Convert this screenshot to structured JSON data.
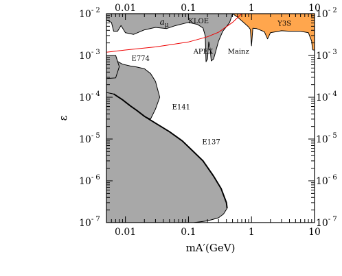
{
  "chart_data": {
    "type": "area",
    "title": "",
    "xlabel": "mA′(GeV)",
    "ylabel": "ε",
    "x_scale": "log",
    "y_scale": "log",
    "xlim": [
      0.005,
      10
    ],
    "ylim": [
      1e-07,
      0.01
    ],
    "grid": false,
    "x_ticks": [
      {
        "value": 0.01,
        "label": "0.01"
      },
      {
        "value": 0.1,
        "label": "0.1"
      },
      {
        "value": 1,
        "label": "1"
      },
      {
        "value": 10,
        "label": "10"
      }
    ],
    "y_ticks": [
      {
        "value": 0.01,
        "base": "10",
        "exp": "- 2"
      },
      {
        "value": 0.001,
        "base": "10",
        "exp": "- 3"
      },
      {
        "value": 0.0001,
        "base": "10",
        "exp": "- 4"
      },
      {
        "value": 1e-05,
        "base": "10",
        "exp": "- 5"
      },
      {
        "value": 1e-06,
        "base": "10",
        "exp": "- 6"
      },
      {
        "value": 1e-07,
        "base": "10",
        "exp": "- 7"
      }
    ],
    "regions": [
      {
        "name": "E137",
        "color": "#a8a8a8",
        "points": [
          [
            0.005,
            1e-07
          ],
          [
            0.005,
            0.00013
          ],
          [
            0.0065,
            0.00012
          ],
          [
            0.009,
            8.7e-05
          ],
          [
            0.012,
            6.2e-05
          ],
          [
            0.015,
            4.9e-05
          ],
          [
            0.02,
            3.5e-05
          ],
          [
            0.03,
            2.4e-05
          ],
          [
            0.05,
            1.5e-05
          ],
          [
            0.08,
            9e-06
          ],
          [
            0.12,
            5e-06
          ],
          [
            0.17,
            3e-06
          ],
          [
            0.25,
            1.3e-06
          ],
          [
            0.33,
            6.5e-07
          ],
          [
            0.4,
            3e-07
          ],
          [
            0.41,
            2.2e-07
          ],
          [
            0.36,
            1.6e-07
          ],
          [
            0.3,
            1.3e-07
          ],
          [
            0.2,
            1.1e-07
          ],
          [
            0.12,
            1e-07
          ]
        ]
      },
      {
        "name": "E141",
        "color": "#a8a8a8",
        "points": [
          [
            0.005,
            0.00013
          ],
          [
            0.0065,
            0.00012
          ],
          [
            0.009,
            8.7e-05
          ],
          [
            0.012,
            6.2e-05
          ],
          [
            0.015,
            4.9e-05
          ],
          [
            0.02,
            3.5e-05
          ],
          [
            0.025,
            3e-05
          ],
          [
            0.03,
            5.2e-05
          ],
          [
            0.035,
            0.0001
          ],
          [
            0.03,
            0.00024
          ],
          [
            0.025,
            0.00037
          ],
          [
            0.02,
            0.00048
          ],
          [
            0.015,
            0.00053
          ],
          [
            0.012,
            0.00056
          ],
          [
            0.009,
            0.00062
          ],
          [
            0.0075,
            0.00072
          ],
          [
            0.007,
            0.001
          ],
          [
            0.005,
            0.001
          ]
        ]
      },
      {
        "name": "E774",
        "color": "#a8a8a8",
        "points": [
          [
            0.005,
            0.001
          ],
          [
            0.007,
            0.001
          ],
          [
            0.0075,
            0.00072
          ],
          [
            0.008,
            0.00054
          ],
          [
            0.007,
            0.00029
          ],
          [
            0.005,
            0.00028
          ]
        ]
      },
      {
        "name": "APEX/Mainz/KLOE/a_mu",
        "color": "#a8a8a8",
        "points": [
          [
            0.005,
            0.01
          ],
          [
            0.5,
            0.01
          ],
          [
            0.45,
            0.0062
          ],
          [
            0.4,
            0.0049
          ],
          [
            0.35,
            0.0038
          ],
          [
            0.3,
            0.0022
          ],
          [
            0.27,
            0.00123
          ],
          [
            0.25,
            0.00082
          ],
          [
            0.23,
            0.00074
          ],
          [
            0.22,
            0.00148
          ],
          [
            0.21,
            0.00212
          ],
          [
            0.2,
            0.00082
          ],
          [
            0.19,
            0.00071
          ],
          [
            0.185,
            0.00295
          ],
          [
            0.17,
            0.00456
          ],
          [
            0.14,
            0.0055
          ],
          [
            0.1,
            0.0062
          ],
          [
            0.06,
            0.0051
          ],
          [
            0.045,
            0.0044
          ],
          [
            0.03,
            0.0047
          ],
          [
            0.02,
            0.0041
          ],
          [
            0.0135,
            0.0032
          ],
          [
            0.01,
            0.0035
          ],
          [
            0.0085,
            0.0052
          ],
          [
            0.0075,
            0.0038
          ],
          [
            0.0065,
            0.0038
          ],
          [
            0.006,
            0.0062
          ],
          [
            0.005,
            0.007
          ]
        ]
      },
      {
        "name": "Y3S",
        "color": "#ffa64d",
        "points": [
          [
            0.5,
            0.01
          ],
          [
            10,
            0.01
          ],
          [
            10,
            0.00135
          ],
          [
            9.5,
            0.00135
          ],
          [
            9.3,
            0.0014
          ],
          [
            9,
            0.0022
          ],
          [
            8,
            0.0035
          ],
          [
            6,
            0.0038
          ],
          [
            4,
            0.0038
          ],
          [
            3,
            0.0039
          ],
          [
            2,
            0.0035
          ],
          [
            1.8,
            0.0025
          ],
          [
            1.6,
            0.0037
          ],
          [
            1.2,
            0.0044
          ],
          [
            1.05,
            0.0045
          ],
          [
            1.0,
            0.0017
          ],
          [
            0.96,
            0.0042
          ],
          [
            0.9,
            0.0048
          ],
          [
            0.75,
            0.0062
          ],
          [
            0.6,
            0.0083
          ]
        ]
      }
    ],
    "curves": [
      {
        "name": "a_mu",
        "color": "#ee0000",
        "points": [
          [
            0.005,
            0.0012
          ],
          [
            0.01,
            0.00135
          ],
          [
            0.03,
            0.0016
          ],
          [
            0.1,
            0.0021
          ],
          [
            0.2,
            0.0028
          ],
          [
            0.3,
            0.0036
          ],
          [
            0.5,
            0.0062
          ],
          [
            0.7,
            0.01
          ]
        ]
      }
    ],
    "annotations": [
      {
        "text": "a",
        "sub": "μ",
        "x": 0.035,
        "y": 0.0055
      },
      {
        "text": "KLOE",
        "x": 0.1,
        "y": 0.0059
      },
      {
        "text": "APEX",
        "x": 0.12,
        "y": 0.0011
      },
      {
        "text": "Mainz",
        "x": 0.42,
        "y": 0.0011
      },
      {
        "text": "Y3S",
        "x": 2.6,
        "y": 0.0052
      },
      {
        "text": "E774",
        "x": 0.0125,
        "y": 0.00075
      },
      {
        "text": "E141",
        "x": 0.055,
        "y": 5.2e-05
      },
      {
        "text": "E137",
        "x": 0.165,
        "y": 7.5e-06
      }
    ]
  }
}
